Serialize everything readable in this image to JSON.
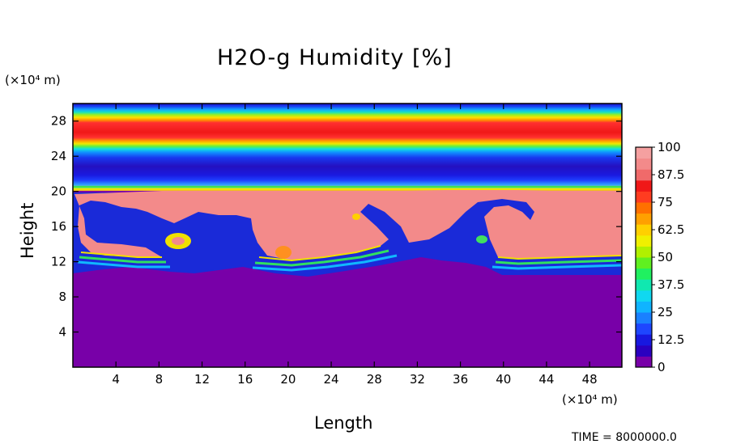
{
  "chart_data": {
    "type": "heatmap",
    "title": "H2O-g Humidity [%]",
    "xlabel": "Length",
    "ylabel": "Height",
    "x_unit": "(×10⁴ m)",
    "y_unit": "(×10⁴ m)",
    "xlim": [
      0,
      51
    ],
    "ylim": [
      0,
      30
    ],
    "x_ticks": [
      "4",
      "8",
      "12",
      "16",
      "20",
      "24",
      "28",
      "32",
      "36",
      "40",
      "44",
      "48"
    ],
    "y_ticks": [
      "4",
      "8",
      "12",
      "16",
      "20",
      "24",
      "28"
    ],
    "colorbar": {
      "levels": [
        "0",
        "12.5",
        "25",
        "37.5",
        "50",
        "62.5",
        "75",
        "87.5",
        "100"
      ],
      "min": 0,
      "max": 100
    },
    "footer_text": "TIME = 8000000.0"
  }
}
